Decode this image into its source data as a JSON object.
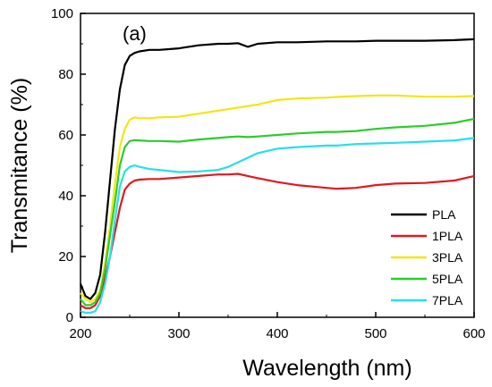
{
  "chart_data": {
    "type": "line",
    "panel_label": "(a)",
    "xlabel": "Wavelength (nm)",
    "ylabel": "Transmitance (%)",
    "xlim": [
      200,
      600
    ],
    "ylim": [
      0,
      100
    ],
    "x_ticks": [
      200,
      300,
      400,
      500,
      600
    ],
    "y_ticks": [
      0,
      20,
      40,
      60,
      80,
      100
    ],
    "legend_position": "bottom-right",
    "x": [
      200,
      205,
      210,
      215,
      220,
      225,
      230,
      235,
      240,
      245,
      250,
      255,
      260,
      270,
      280,
      300,
      320,
      340,
      350,
      360,
      370,
      380,
      400,
      420,
      450,
      460,
      480,
      500,
      520,
      550,
      580,
      600
    ],
    "series": [
      {
        "name": "PLA",
        "color": "#000000",
        "values": [
          11,
          7,
          6,
          8,
          14,
          28,
          45,
          62,
          75,
          83,
          86,
          87,
          87.5,
          88,
          88,
          88.5,
          89.5,
          90,
          90,
          90.2,
          89,
          90,
          90.5,
          90.5,
          90.8,
          90.8,
          90.8,
          91,
          91,
          91,
          91.2,
          91.5
        ]
      },
      {
        "name": "1PLA",
        "color": "#e0191f",
        "values": [
          4,
          3,
          3,
          4,
          7,
          13,
          20,
          28,
          36,
          42,
          44,
          45,
          45.3,
          45.5,
          45.5,
          46,
          46.5,
          47,
          47,
          47.2,
          46.5,
          45.8,
          44.5,
          43.5,
          42.6,
          42.3,
          42.6,
          43.5,
          44,
          44.2,
          45,
          46.5
        ]
      },
      {
        "name": "3PLA",
        "color": "#f2e615",
        "values": [
          8,
          6,
          5,
          6,
          9,
          18,
          30,
          44,
          56,
          62,
          65,
          65.8,
          65.5,
          65.5,
          65.8,
          66,
          67,
          68,
          68.5,
          69,
          69.5,
          70,
          71.5,
          72,
          72.3,
          72.5,
          72.8,
          73,
          73,
          72.6,
          72.6,
          72.8
        ]
      },
      {
        "name": "5PLA",
        "color": "#2ccc2c",
        "values": [
          6,
          4,
          4,
          5,
          8,
          16,
          27,
          38,
          50,
          56,
          58,
          58.3,
          58.2,
          58,
          58,
          57.8,
          58.5,
          59,
          59.3,
          59.5,
          59.3,
          59.5,
          60,
          60.5,
          61,
          61,
          61.3,
          62,
          62.5,
          63,
          64,
          65.3
        ]
      },
      {
        "name": "7PLA",
        "color": "#26e0e6",
        "values": [
          2,
          1.5,
          1.5,
          2,
          5,
          11,
          20,
          32,
          43,
          48,
          49.5,
          50,
          49.5,
          48.8,
          48.5,
          47.8,
          48,
          48.5,
          49.5,
          51,
          52.5,
          54,
          55.5,
          56,
          56.5,
          56.5,
          57,
          57.2,
          57.4,
          57.8,
          58.2,
          59
        ]
      }
    ]
  }
}
